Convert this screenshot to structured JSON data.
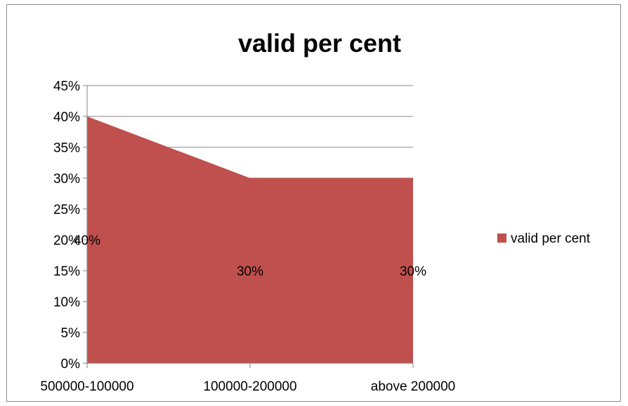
{
  "chart_data": {
    "type": "area",
    "title": "valid per cent",
    "categories": [
      "500000-100000",
      "100000-200000",
      "above 200000"
    ],
    "series": [
      {
        "name": "valid per cent",
        "values": [
          40,
          30,
          30
        ],
        "data_labels": [
          "40%",
          "30%",
          "30%"
        ],
        "color": "#c0504d"
      }
    ],
    "y_ticks": [
      "0%",
      "5%",
      "10%",
      "15%",
      "20%",
      "25%",
      "30%",
      "35%",
      "40%",
      "45%"
    ],
    "ylim": [
      0,
      45
    ],
    "grid": true,
    "legend_position": "right"
  }
}
